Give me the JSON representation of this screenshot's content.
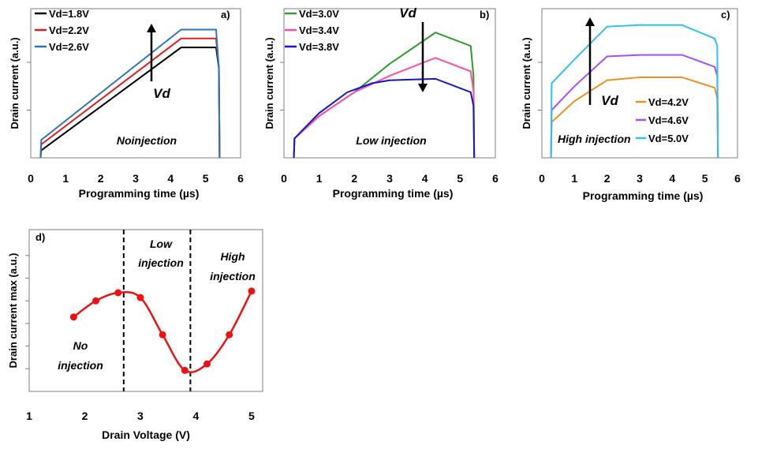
{
  "chart_data": [
    {
      "type": "line",
      "panel": "a)",
      "ylabel": "Drain current (a.u.)",
      "xlabel": "Programming time (µs)",
      "xlim": [
        0,
        6
      ],
      "xticks": [
        "0",
        "1",
        "2",
        "3",
        "4",
        "5",
        "6"
      ],
      "ylim": [
        0,
        1
      ],
      "yticks": [
        0.32,
        0.64
      ],
      "annotation": "Noinjection",
      "arrow_label": "Vd",
      "arrow_direction": "up",
      "series": [
        {
          "name": "Vd=1.8V",
          "color": "#000000",
          "x": [
            0.28,
            0.3,
            4.3,
            5.3,
            5.38,
            5.4
          ],
          "y": [
            0.0,
            0.05,
            0.74,
            0.74,
            0.6,
            0.0
          ]
        },
        {
          "name": "Vd=2.2V",
          "color": "#e02020",
          "x": [
            0.28,
            0.3,
            4.3,
            5.3,
            5.38,
            5.4
          ],
          "y": [
            0.0,
            0.09,
            0.8,
            0.8,
            0.6,
            0.0
          ]
        },
        {
          "name": "Vd=2.6V",
          "color": "#2e75b6",
          "x": [
            0.28,
            0.3,
            4.3,
            5.3,
            5.38,
            5.4
          ],
          "y": [
            0.0,
            0.12,
            0.86,
            0.86,
            0.6,
            0.0
          ]
        }
      ]
    },
    {
      "type": "line",
      "panel": "b)",
      "ylabel": "Drain current (a.u.)",
      "xlabel": "Programming time (µs)",
      "xlim": [
        0,
        6
      ],
      "xticks": [
        "0",
        "1",
        "2",
        "3",
        "4",
        "5",
        "6"
      ],
      "ylim": [
        0,
        1
      ],
      "yticks": [
        0.32,
        0.64
      ],
      "annotation": "Low injection",
      "arrow_label": "Vd",
      "arrow_direction": "down",
      "series": [
        {
          "name": "Vd=3.0V",
          "color": "#2e9c2e",
          "x": [
            0.28,
            0.3,
            1.0,
            2.0,
            3.0,
            4.3,
            5.3,
            5.38,
            5.4
          ],
          "y": [
            0.0,
            0.13,
            0.28,
            0.44,
            0.63,
            0.84,
            0.75,
            0.55,
            0.0
          ]
        },
        {
          "name": "Vd=3.4V",
          "color": "#ff4fa3",
          "x": [
            0.28,
            0.3,
            1.0,
            2.0,
            3.0,
            4.3,
            5.3,
            5.38,
            5.4
          ],
          "y": [
            0.0,
            0.13,
            0.28,
            0.44,
            0.55,
            0.67,
            0.58,
            0.45,
            0.0
          ]
        },
        {
          "name": "Vd=3.8V",
          "color": "#1515d0",
          "x": [
            0.28,
            0.3,
            1.0,
            1.8,
            2.5,
            3.0,
            4.3,
            5.3,
            5.38,
            5.4
          ],
          "y": [
            0.0,
            0.13,
            0.3,
            0.44,
            0.5,
            0.52,
            0.53,
            0.44,
            0.35,
            0.0
          ]
        }
      ]
    },
    {
      "type": "line",
      "panel": "c)",
      "ylabel": "Drain current (a.u.)",
      "xlabel": "Programming time (µs)",
      "xlim": [
        0,
        6
      ],
      "xticks": [
        "0",
        "1",
        "2",
        "3",
        "4",
        "5",
        "6"
      ],
      "ylim": [
        0,
        1
      ],
      "yticks": [
        0.32,
        0.64
      ],
      "annotation": "High injection",
      "arrow_label": "Vd",
      "arrow_direction": "up",
      "series": [
        {
          "name": "Vd=4.2V",
          "color": "#f0901e",
          "x": [
            0.28,
            0.3,
            1.0,
            2.0,
            3.0,
            4.3,
            5.3,
            5.38,
            5.4
          ],
          "y": [
            0.0,
            0.24,
            0.38,
            0.52,
            0.54,
            0.54,
            0.47,
            0.4,
            0.0
          ]
        },
        {
          "name": "Vd=4.6V",
          "color": "#a64dff",
          "x": [
            0.28,
            0.3,
            1.0,
            2.0,
            3.0,
            4.3,
            5.3,
            5.38,
            5.4
          ],
          "y": [
            0.0,
            0.32,
            0.48,
            0.68,
            0.69,
            0.69,
            0.61,
            0.55,
            0.0
          ]
        },
        {
          "name": "Vd=5.0V",
          "color": "#2ec2ee",
          "x": [
            0.28,
            0.3,
            1.0,
            2.0,
            3.0,
            4.3,
            5.3,
            5.38,
            5.4
          ],
          "y": [
            0.0,
            0.5,
            0.66,
            0.88,
            0.89,
            0.89,
            0.8,
            0.75,
            0.0
          ]
        }
      ]
    },
    {
      "type": "line",
      "panel": "d)",
      "ylabel": "Drain current max (a.u.)",
      "xlabel": "Drain Voltage (V)",
      "xlim": [
        1,
        5.2
      ],
      "xticks": [
        "1",
        "2",
        "3",
        "4",
        "5"
      ],
      "ylim": [
        0,
        1
      ],
      "yticks": [
        0.14,
        0.28,
        0.42,
        0.56,
        0.7,
        0.84
      ],
      "series": [
        {
          "name": "",
          "color": "#ee1111",
          "x": [
            1.8,
            2.2,
            2.6,
            3.0,
            3.4,
            3.8,
            4.2,
            4.6,
            5.0
          ],
          "y": [
            0.46,
            0.56,
            0.61,
            0.58,
            0.35,
            0.13,
            0.17,
            0.35,
            0.62
          ]
        }
      ],
      "dividers_x": [
        2.7,
        3.9
      ],
      "region_labels": [
        {
          "line1": "No",
          "line2": "injection"
        },
        {
          "line1": "Low",
          "line2": "injection"
        },
        {
          "line1": "High",
          "line2": "injection"
        }
      ]
    }
  ]
}
